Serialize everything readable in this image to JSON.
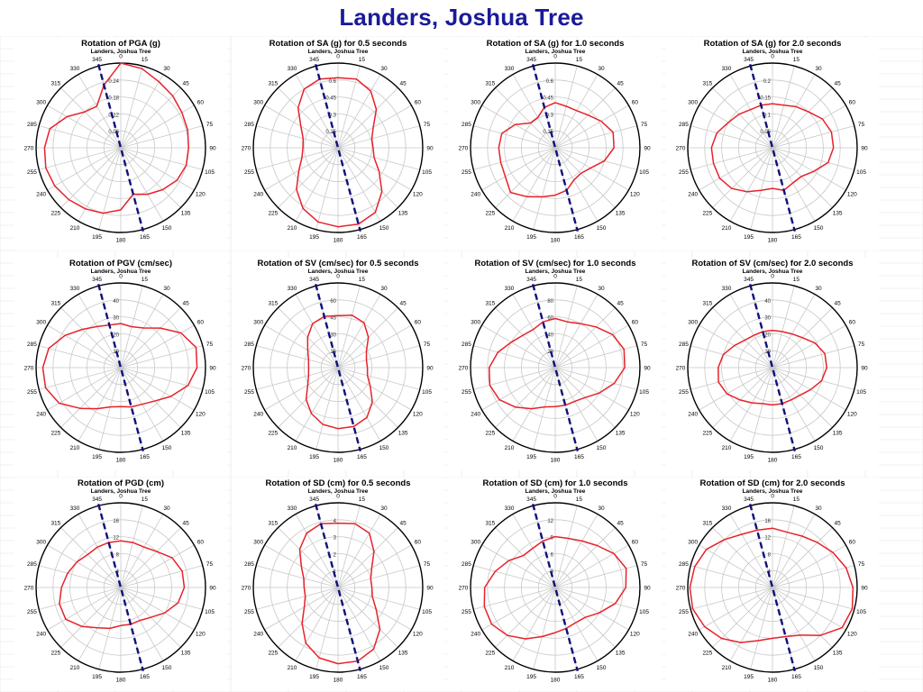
{
  "title": "Landers, Joshua Tree",
  "colors": {
    "title": "#1a1a99",
    "trace": "#e8212a",
    "strike_line": "#10107a",
    "grid": "#c8c8c8",
    "border": "#000000"
  },
  "angle_labels": [
    "0",
    "15",
    "30",
    "45",
    "60",
    "75",
    "90",
    "105",
    "120",
    "135",
    "150",
    "165",
    "180",
    "195",
    "210",
    "225",
    "240",
    "255",
    "270",
    "285",
    "300",
    "315",
    "330",
    "345"
  ],
  "chart_data": [
    {
      "type": "polar",
      "title": "Rotation of PGA (g)",
      "subtitle": "Landers, Joshua Tree",
      "rings": [
        "0.06",
        "0.12",
        "0.18",
        "0.24"
      ],
      "rmax": 0.3,
      "line_angle": 165,
      "radius": [
        0.3,
        0.29,
        0.27,
        0.26,
        0.25,
        0.245,
        0.24,
        0.24,
        0.23,
        0.21,
        0.19,
        0.17,
        0.22,
        0.24,
        0.25,
        0.26,
        0.27,
        0.275,
        0.27,
        0.26,
        0.22,
        0.18,
        0.17,
        0.23
      ]
    },
    {
      "type": "polar",
      "title": "Rotation of SA (g) for 0.5 seconds",
      "subtitle": "Landers, Joshua Tree",
      "rings": [
        "0.15",
        "0.3",
        "0.45",
        "0.6"
      ],
      "rmax": 0.75,
      "line_angle": 165,
      "radius": [
        0.62,
        0.63,
        0.58,
        0.48,
        0.36,
        0.31,
        0.31,
        0.33,
        0.42,
        0.55,
        0.66,
        0.7,
        0.7,
        0.68,
        0.62,
        0.52,
        0.4,
        0.33,
        0.31,
        0.32,
        0.38,
        0.5,
        0.6,
        0.63
      ]
    },
    {
      "type": "polar",
      "title": "Rotation of SA (g) for 1.0 seconds",
      "subtitle": "Landers, Joshua Tree",
      "rings": [
        "0.15",
        "0.3",
        "0.45",
        "0.6"
      ],
      "rmax": 0.75,
      "line_angle": 165,
      "radius": [
        0.4,
        0.38,
        0.38,
        0.41,
        0.47,
        0.53,
        0.52,
        0.45,
        0.36,
        0.32,
        0.33,
        0.39,
        0.42,
        0.45,
        0.5,
        0.56,
        0.51,
        0.5,
        0.5,
        0.49,
        0.41,
        0.31,
        0.31,
        0.37
      ]
    },
    {
      "type": "polar",
      "title": "Rotation of SA (g) for 2.0 seconds",
      "subtitle": "Landers, Joshua Tree",
      "rings": [
        "0.05",
        "0.1",
        "0.15",
        "0.2"
      ],
      "rmax": 0.25,
      "line_angle": 165,
      "radius": [
        0.13,
        0.13,
        0.14,
        0.15,
        0.17,
        0.18,
        0.18,
        0.17,
        0.14,
        0.12,
        0.12,
        0.13,
        0.12,
        0.13,
        0.15,
        0.17,
        0.18,
        0.18,
        0.18,
        0.17,
        0.15,
        0.14,
        0.13,
        0.13
      ]
    },
    {
      "type": "polar",
      "title": "Rotation of PGV (cm/sec)",
      "subtitle": "Landers, Joshua Tree",
      "rings": [
        "10",
        "20",
        "30",
        "40"
      ],
      "rmax": 50,
      "line_angle": 165,
      "radius": [
        26,
        25,
        27,
        33,
        41,
        46,
        45,
        41,
        34,
        28,
        25,
        24,
        23,
        24,
        28,
        34,
        42,
        46,
        46,
        44,
        38,
        32,
        28,
        26
      ]
    },
    {
      "type": "polar",
      "title": "Rotation of SV (cm/sec) for 0.5 seconds",
      "subtitle": "Landers, Joshua Tree",
      "rings": [
        "15",
        "30",
        "45",
        "60"
      ],
      "rmax": 75,
      "line_angle": 165,
      "radius": [
        46,
        48,
        46,
        38,
        29,
        26,
        26,
        27,
        33,
        43,
        51,
        54,
        54,
        52,
        47,
        40,
        31,
        27,
        26,
        27,
        31,
        38,
        45,
        47
      ]
    },
    {
      "type": "polar",
      "title": "Rotation of SV (cm/sec) for 1.0 seconds",
      "subtitle": "Landers, Joshua Tree",
      "rings": [
        "20",
        "40",
        "60",
        "80"
      ],
      "rmax": 100,
      "line_angle": 165,
      "radius": [
        58,
        56,
        60,
        68,
        78,
        84,
        82,
        72,
        60,
        50,
        46,
        46,
        46,
        48,
        56,
        66,
        76,
        80,
        78,
        70,
        60,
        54,
        52,
        56
      ]
    },
    {
      "type": "polar",
      "title": "Rotation of SV (cm/sec) for 2.0 seconds",
      "subtitle": "Landers, Joshua Tree",
      "rings": [
        "10",
        "20",
        "30",
        "40"
      ],
      "rmax": 50,
      "line_angle": 165,
      "radius": [
        22,
        22,
        23,
        25,
        29,
        32,
        32,
        30,
        26,
        23,
        22,
        22,
        22,
        22,
        24,
        27,
        31,
        33,
        32,
        30,
        26,
        23,
        22,
        22
      ]
    },
    {
      "type": "polar",
      "title": "Rotation of PGD (cm)",
      "subtitle": "Landers, Joshua Tree",
      "rings": [
        "4",
        "8",
        "12",
        "16"
      ],
      "rmax": 20,
      "line_angle": 165,
      "radius": [
        11,
        11,
        11,
        12,
        14,
        15,
        15,
        14,
        12,
        10,
        9,
        9,
        9,
        10,
        11,
        13,
        15,
        15,
        14,
        13,
        12,
        11,
        11,
        11
      ]
    },
    {
      "type": "polar",
      "title": "Rotation of SD (cm) for 0.5 seconds",
      "subtitle": "Landers, Joshua Tree",
      "rings": [
        "1",
        "2",
        "3",
        "4"
      ],
      "rmax": 5,
      "line_angle": 165,
      "radius": [
        3.8,
        3.9,
        3.7,
        3.0,
        2.3,
        2.0,
        2.0,
        2.1,
        2.6,
        3.5,
        4.2,
        4.5,
        4.5,
        4.3,
        3.8,
        3.0,
        2.3,
        2.0,
        2.0,
        2.1,
        2.5,
        3.2,
        3.7,
        3.9
      ]
    },
    {
      "type": "polar",
      "title": "Rotation of SD (cm) for 1.0 seconds",
      "subtitle": "Landers, Joshua Tree",
      "rings": [
        "3",
        "6",
        "9",
        "12"
      ],
      "rmax": 15,
      "line_angle": 165,
      "radius": [
        9,
        9,
        9.5,
        10.5,
        12,
        13,
        12.5,
        11,
        9,
        7.5,
        7.2,
        7.5,
        8,
        9,
        10.5,
        12,
        13,
        13,
        12.5,
        11,
        9.5,
        8,
        8,
        8.5
      ]
    },
    {
      "type": "polar",
      "title": "Rotation of SD (cm) for 2.0 seconds",
      "subtitle": "Landers, Joshua Tree",
      "rings": [
        "4",
        "8",
        "12",
        "16"
      ],
      "rmax": 20,
      "line_angle": 165,
      "radius": [
        14,
        13.5,
        14,
        15,
        16.5,
        18,
        19,
        19.5,
        19,
        16,
        13,
        12,
        12,
        13,
        15,
        17,
        18.5,
        19.5,
        19.5,
        19,
        18,
        16,
        14.5,
        14
      ]
    }
  ]
}
